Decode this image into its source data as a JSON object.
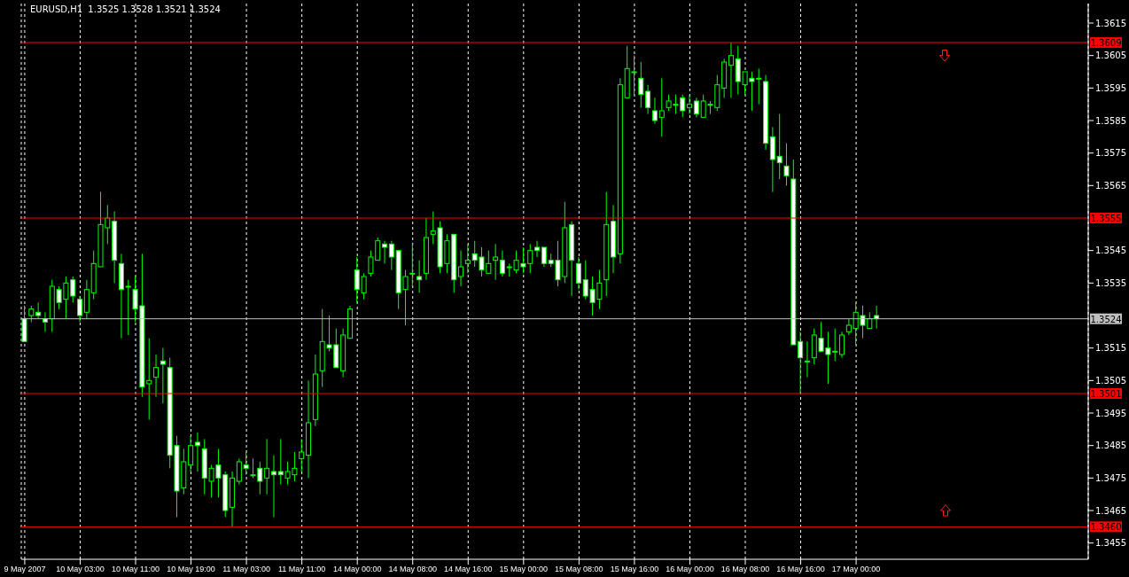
{
  "chart_data": {
    "type": "candlestick",
    "title": "EURUSD,H1  1.3525 1.3528 1.3521 1.3524",
    "color": "#00ff00",
    "grid": "x",
    "categories": [
      "9 May 2007",
      null,
      null,
      null,
      null,
      null,
      null,
      null,
      "10 May 03:00",
      null,
      null,
      null,
      null,
      null,
      null,
      null,
      "10 May 11:00",
      null,
      null,
      null,
      null,
      null,
      null,
      null,
      "10 May 19:00",
      null,
      null,
      null,
      null,
      null,
      null,
      null,
      "11 May 03:00",
      null,
      null,
      null,
      null,
      null,
      null,
      null,
      "11 May 11:00",
      null,
      null,
      null,
      null,
      null,
      null,
      null,
      "14 May 00:00",
      null,
      null,
      null,
      null,
      null,
      null,
      null,
      "14 May 08:00",
      null,
      null,
      null,
      null,
      null,
      null,
      null,
      "14 May 16:00",
      null,
      null,
      null,
      null,
      null,
      null,
      null,
      "15 May 00:00",
      null,
      null,
      null,
      null,
      null,
      null,
      null,
      "15 May 08:00",
      null,
      null,
      null,
      null,
      null,
      null,
      null,
      "15 May 16:00",
      null,
      null,
      null,
      null,
      null,
      null,
      null,
      "16 May 00:00",
      null,
      null,
      null,
      null,
      null,
      null,
      null,
      "16 May 08:00",
      null,
      null,
      null,
      null,
      null,
      null,
      null,
      "16 May 16:00",
      null,
      null,
      null,
      null,
      null,
      null,
      null,
      "17 May 00:00",
      null,
      null,
      null,
      null,
      null,
      null,
      null,
      null,
      null,
      null,
      null,
      null,
      null,
      null,
      null,
      null,
      null,
      null,
      null,
      null,
      null,
      null,
      null,
      null,
      null,
      null,
      null,
      null,
      null,
      null,
      null,
      null,
      null
    ],
    "ohlc": [
      [
        1.3524,
        1.3528,
        1.3517,
        1.3517
      ],
      [
        1.3525,
        1.3528,
        1.3523,
        1.3527
      ],
      [
        1.3526,
        1.3529,
        1.3524,
        1.3525
      ],
      [
        1.3524,
        1.3526,
        1.352,
        1.3523
      ],
      [
        1.3524,
        1.3536,
        1.352,
        1.3534
      ],
      [
        1.3533,
        1.3534,
        1.3527,
        1.3529
      ],
      [
        1.353,
        1.3537,
        1.3524,
        1.3535
      ],
      [
        1.3536,
        1.3537,
        1.3529,
        1.3531
      ],
      [
        1.353,
        1.3531,
        1.3523,
        1.3525
      ],
      [
        1.3526,
        1.3536,
        1.3524,
        1.3533
      ],
      [
        1.3532,
        1.3545,
        1.353,
        1.3541
      ],
      [
        1.354,
        1.3563,
        1.354,
        1.3553
      ],
      [
        1.3552,
        1.3559,
        1.3547,
        1.3555
      ],
      [
        1.3554,
        1.3557,
        1.3535,
        1.3542
      ],
      [
        1.3541,
        1.3544,
        1.3518,
        1.3533
      ],
      [
        1.3534,
        1.3536,
        1.3519,
        1.3534
      ],
      [
        1.3533,
        1.3537,
        1.3523,
        1.3527
      ],
      [
        1.3528,
        1.3544,
        1.35,
        1.3503
      ],
      [
        1.3504,
        1.3518,
        1.3493,
        1.3505
      ],
      [
        1.3506,
        1.3513,
        1.35,
        1.3509
      ],
      [
        1.3511,
        1.3515,
        1.3498,
        1.351
      ],
      [
        1.3509,
        1.3512,
        1.3478,
        1.3482
      ],
      [
        1.3485,
        1.3488,
        1.3463,
        1.3471
      ],
      [
        1.3472,
        1.3484,
        1.347,
        1.348
      ],
      [
        1.3479,
        1.3488,
        1.3477,
        1.3485
      ],
      [
        1.3486,
        1.3489,
        1.3477,
        1.3485
      ],
      [
        1.3484,
        1.3487,
        1.347,
        1.3475
      ],
      [
        1.3474,
        1.3479,
        1.3469,
        1.3478
      ],
      [
        1.3479,
        1.3484,
        1.3469,
        1.3475
      ],
      [
        1.3476,
        1.3477,
        1.3463,
        1.3465
      ],
      [
        1.3466,
        1.3477,
        1.346,
        1.3475
      ],
      [
        1.3474,
        1.3481,
        1.3473,
        1.348
      ],
      [
        1.3479,
        1.3483,
        1.3476,
        1.3478
      ],
      [
        1.3476,
        1.3481,
        1.3475,
        1.3476
      ],
      [
        1.3478,
        1.348,
        1.347,
        1.3474
      ],
      [
        1.3475,
        1.3487,
        1.347,
        1.3478
      ],
      [
        1.3477,
        1.3482,
        1.3463,
        1.3476
      ],
      [
        1.3477,
        1.3487,
        1.3473,
        1.3476
      ],
      [
        1.3475,
        1.348,
        1.3473,
        1.3477
      ],
      [
        1.3476,
        1.3483,
        1.3474,
        1.3478
      ],
      [
        1.3481,
        1.3487,
        1.3477,
        1.3483
      ],
      [
        1.3482,
        1.3505,
        1.3475,
        1.3492
      ],
      [
        1.3493,
        1.3513,
        1.3491,
        1.3507
      ],
      [
        1.3508,
        1.3527,
        1.3503,
        1.3517
      ],
      [
        1.3516,
        1.3525,
        1.3514,
        1.3515
      ],
      [
        1.3516,
        1.3521,
        1.3509,
        1.3509
      ],
      [
        1.3508,
        1.3521,
        1.3506,
        1.3519
      ],
      [
        1.3518,
        1.3528,
        1.3518,
        1.3527
      ],
      [
        1.3539,
        1.3543,
        1.3529,
        1.3533
      ],
      [
        1.3532,
        1.3538,
        1.353,
        1.3537
      ],
      [
        1.3538,
        1.3545,
        1.3537,
        1.3543
      ],
      [
        1.3542,
        1.3549,
        1.3542,
        1.3548
      ],
      [
        1.3547,
        1.3548,
        1.3541,
        1.3546
      ],
      [
        1.3547,
        1.3548,
        1.3539,
        1.3543
      ],
      [
        1.3545,
        1.3545,
        1.3527,
        1.3532
      ],
      [
        1.3533,
        1.3539,
        1.3522,
        1.3537
      ],
      [
        1.3538,
        1.3547,
        1.3534,
        1.3538
      ],
      [
        1.3537,
        1.3542,
        1.3532,
        1.3536
      ],
      [
        1.3538,
        1.3555,
        1.3536,
        1.3549
      ],
      [
        1.355,
        1.3557,
        1.3547,
        1.3551
      ],
      [
        1.3552,
        1.3554,
        1.3538,
        1.354
      ],
      [
        1.3541,
        1.355,
        1.3538,
        1.3548
      ],
      [
        1.355,
        1.355,
        1.3532,
        1.3536
      ],
      [
        1.3537,
        1.3545,
        1.3534,
        1.354
      ],
      [
        1.3541,
        1.3547,
        1.3538,
        1.3542
      ],
      [
        1.3544,
        1.3548,
        1.354,
        1.3542
      ],
      [
        1.3543,
        1.3546,
        1.3537,
        1.3539
      ],
      [
        1.3538,
        1.3545,
        1.3538,
        1.3541
      ],
      [
        1.3542,
        1.3547,
        1.3536,
        1.3543
      ],
      [
        1.3542,
        1.3545,
        1.3537,
        1.3538
      ],
      [
        1.354,
        1.3541,
        1.3537,
        1.354
      ],
      [
        1.3539,
        1.3545,
        1.3538,
        1.3542
      ],
      [
        1.3541,
        1.3546,
        1.3538,
        1.354
      ],
      [
        1.3541,
        1.3547,
        1.3538,
        1.3545
      ],
      [
        1.3546,
        1.3548,
        1.3543,
        1.3545
      ],
      [
        1.3546,
        1.3546,
        1.354,
        1.3541
      ],
      [
        1.3542,
        1.3544,
        1.354,
        1.3541
      ],
      [
        1.3542,
        1.3548,
        1.3534,
        1.3536
      ],
      [
        1.3537,
        1.356,
        1.3535,
        1.3552
      ],
      [
        1.3553,
        1.3554,
        1.3531,
        1.3542
      ],
      [
        1.3541,
        1.3543,
        1.3533,
        1.3535
      ],
      [
        1.3536,
        1.3542,
        1.353,
        1.3531
      ],
      [
        1.3533,
        1.3537,
        1.3525,
        1.3529
      ],
      [
        1.353,
        1.3539,
        1.3527,
        1.3535
      ],
      [
        1.3536,
        1.3563,
        1.3531,
        1.3553
      ],
      [
        1.3554,
        1.3559,
        1.3538,
        1.3543
      ],
      [
        1.3544,
        1.3598,
        1.3541,
        1.3596
      ],
      [
        1.3592,
        1.3608,
        1.3592,
        1.3601
      ],
      [
        1.36,
        1.3605,
        1.3593,
        1.36
      ],
      [
        1.3598,
        1.3603,
        1.3589,
        1.3593
      ],
      [
        1.3594,
        1.3596,
        1.3587,
        1.3589
      ],
      [
        1.3588,
        1.3592,
        1.3584,
        1.3585
      ],
      [
        1.3586,
        1.3598,
        1.358,
        1.3588
      ],
      [
        1.3589,
        1.3593,
        1.3588,
        1.3591
      ],
      [
        1.359,
        1.3593,
        1.3587,
        1.359
      ],
      [
        1.3592,
        1.3593,
        1.3586,
        1.3588
      ],
      [
        1.3589,
        1.3593,
        1.3587,
        1.359
      ],
      [
        1.3591,
        1.3592,
        1.3586,
        1.3587
      ],
      [
        1.3586,
        1.3593,
        1.3586,
        1.3591
      ],
      [
        1.359,
        1.3591,
        1.3587,
        1.359
      ],
      [
        1.3589,
        1.3599,
        1.3588,
        1.3596
      ],
      [
        1.3595,
        1.3604,
        1.3592,
        1.3603
      ],
      [
        1.3602,
        1.3609,
        1.3592,
        1.3605
      ],
      [
        1.3604,
        1.3608,
        1.3593,
        1.3597
      ],
      [
        1.3596,
        1.36,
        1.3593,
        1.36
      ],
      [
        1.3598,
        1.36,
        1.3588,
        1.3597
      ],
      [
        1.3598,
        1.3601,
        1.359,
        1.3598
      ],
      [
        1.3597,
        1.3599,
        1.3576,
        1.3578
      ],
      [
        1.358,
        1.3583,
        1.3563,
        1.3573
      ],
      [
        1.3574,
        1.3587,
        1.3567,
        1.3572
      ],
      [
        1.3571,
        1.3578,
        1.3565,
        1.3568
      ],
      [
        1.3567,
        1.3573,
        1.3516,
        1.3516
      ],
      [
        1.3517,
        1.352,
        1.3501,
        1.3512
      ],
      [
        1.3511,
        1.3517,
        1.3506,
        1.3511
      ],
      [
        1.3512,
        1.3521,
        1.351,
        1.3519
      ],
      [
        1.3518,
        1.3523,
        1.3514,
        1.3514
      ],
      [
        1.3515,
        1.352,
        1.3504,
        1.3513
      ],
      [
        1.3514,
        1.3521,
        1.3511,
        1.3514
      ],
      [
        1.3513,
        1.352,
        1.3512,
        1.3519
      ],
      [
        1.352,
        1.3524,
        1.3519,
        1.3522
      ],
      [
        1.3521,
        1.3529,
        1.3516,
        1.3526
      ],
      [
        1.3525,
        1.3528,
        1.3518,
        1.3522
      ],
      [
        1.3521,
        1.3526,
        1.3521,
        1.3524
      ],
      [
        1.3525,
        1.3528,
        1.3521,
        1.3524
      ],
      null,
      null,
      null,
      null,
      null,
      null,
      null,
      null,
      null,
      null,
      null,
      null,
      null,
      null,
      null,
      null,
      null,
      null,
      null,
      null,
      null,
      null,
      null,
      null,
      null,
      null,
      null,
      null,
      null,
      null
    ],
    "ylim": [
      1.345,
      1.3621
    ],
    "yticks": [
      1.3455,
      1.3465,
      1.3475,
      1.3485,
      1.3495,
      1.3505,
      1.3515,
      1.3535,
      1.3545,
      1.3565,
      1.3575,
      1.3585,
      1.3595,
      1.3605,
      1.3615
    ],
    "ref_lines": [
      {
        "axis": "y",
        "value": 1.3609,
        "label": "1.3609",
        "color": "#ff0000"
      },
      {
        "axis": "y",
        "value": 1.3555,
        "label": "1.3555",
        "color": "#ff0000"
      },
      {
        "axis": "y",
        "value": 1.3524,
        "label": "1.3524",
        "color": "#c0c0c0"
      },
      {
        "axis": "y",
        "value": 1.3501,
        "label": "1.3501",
        "color": "#ff0000"
      },
      {
        "axis": "y",
        "value": 1.346,
        "label": "1.3460",
        "color": "#ff0000"
      }
    ]
  }
}
